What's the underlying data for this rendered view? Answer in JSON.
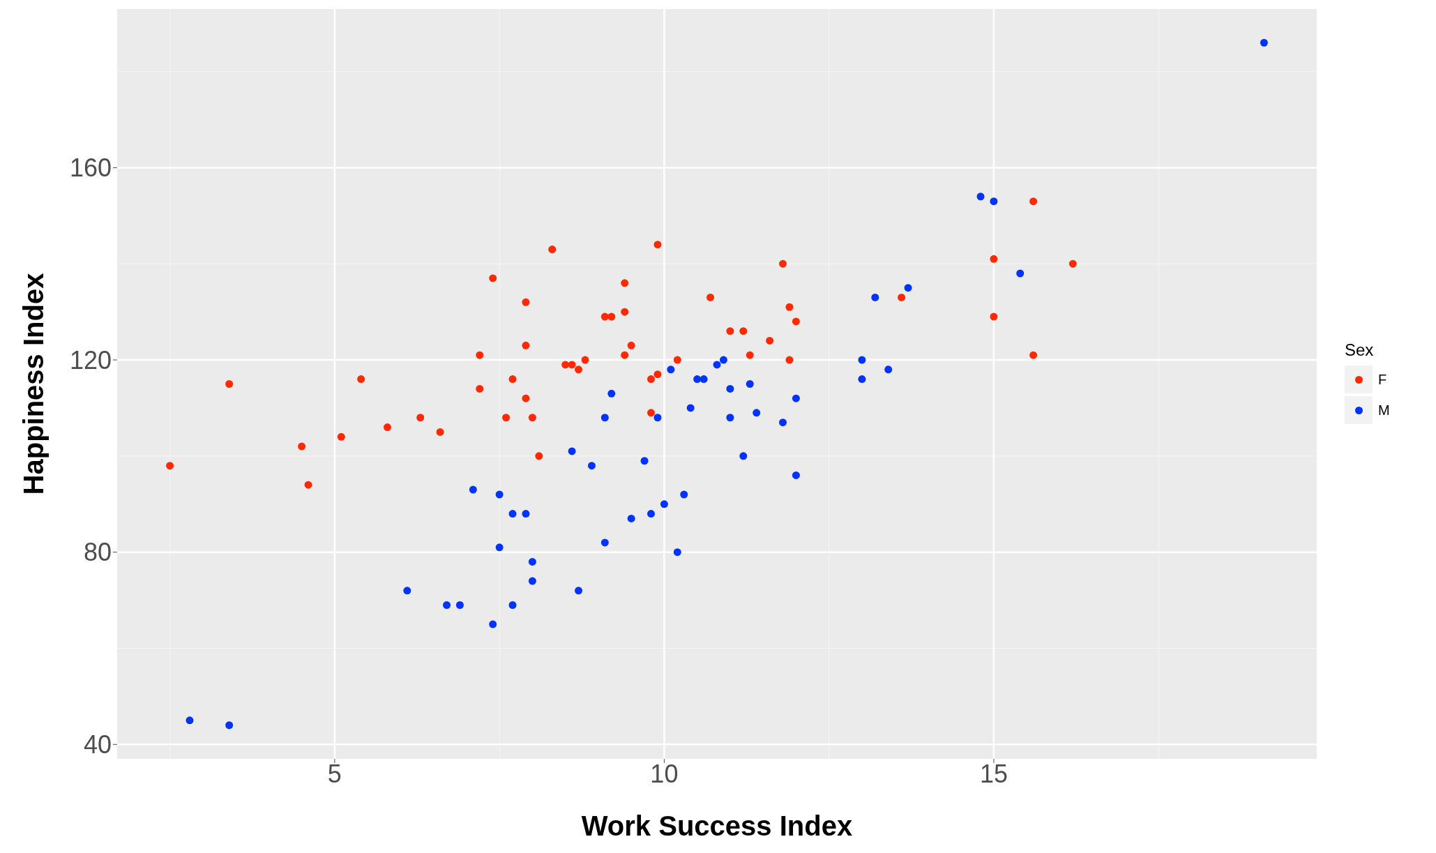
{
  "chart_data": {
    "type": "scatter",
    "xlabel": "Work Success Index",
    "ylabel": "Happiness Index",
    "legend_title": "Sex",
    "legend": "right",
    "grid": true,
    "marker": "circle",
    "xlim": [
      1.7,
      19.9
    ],
    "ylim": [
      37,
      193
    ],
    "xticks": [
      5,
      10,
      15
    ],
    "yticks": [
      40,
      80,
      120,
      160
    ],
    "series": [
      {
        "name": "F",
        "color": "#ff2a00",
        "x": [
          2.5,
          3.4,
          4.5,
          4.6,
          5.1,
          5.4,
          5.8,
          6.3,
          6.6,
          7.2,
          7.2,
          7.4,
          7.6,
          7.7,
          7.9,
          7.9,
          7.9,
          8.0,
          8.1,
          8.3,
          8.5,
          8.6,
          8.7,
          8.8,
          9.1,
          9.2,
          9.4,
          9.4,
          9.4,
          9.5,
          9.8,
          9.8,
          9.9,
          9.9,
          10.2,
          10.7,
          11.0,
          11.2,
          11.3,
          11.6,
          11.8,
          11.9,
          11.9,
          12.0,
          13.6,
          15.0,
          15.0,
          15.6,
          15.6,
          16.2
        ],
        "values": [
          98,
          115,
          102,
          94,
          104,
          116,
          106,
          108,
          105,
          121,
          114,
          137,
          108,
          116,
          123,
          132,
          112,
          108,
          100,
          143,
          119,
          119,
          118,
          120,
          129,
          129,
          136,
          130,
          121,
          123,
          109,
          116,
          117,
          144,
          120,
          133,
          126,
          126,
          121,
          124,
          140,
          131,
          120,
          128,
          133,
          141,
          129,
          153,
          121,
          140
        ]
      },
      {
        "name": "M",
        "color": "#0033ff",
        "x": [
          2.8,
          3.4,
          6.1,
          6.7,
          6.9,
          7.1,
          7.4,
          7.5,
          7.5,
          7.7,
          7.7,
          7.9,
          8.0,
          8.0,
          8.6,
          8.7,
          8.9,
          9.1,
          9.1,
          9.2,
          9.5,
          9.7,
          9.8,
          9.9,
          10.0,
          10.1,
          10.2,
          10.3,
          10.4,
          10.5,
          10.6,
          10.8,
          10.9,
          11.0,
          11.0,
          11.2,
          11.3,
          11.4,
          11.8,
          12.0,
          12.0,
          13.0,
          13.0,
          13.2,
          13.4,
          13.7,
          14.8,
          15.0,
          15.4,
          19.1
        ],
        "values": [
          45,
          44,
          72,
          69,
          69,
          93,
          65,
          81,
          92,
          88,
          69,
          88,
          74,
          78,
          101,
          72,
          98,
          108,
          82,
          113,
          87,
          99,
          88,
          108,
          90,
          118,
          80,
          92,
          110,
          116,
          116,
          119,
          120,
          108,
          114,
          100,
          115,
          109,
          107,
          112,
          96,
          116,
          120,
          133,
          118,
          135,
          154,
          153,
          138,
          186
        ]
      }
    ]
  }
}
